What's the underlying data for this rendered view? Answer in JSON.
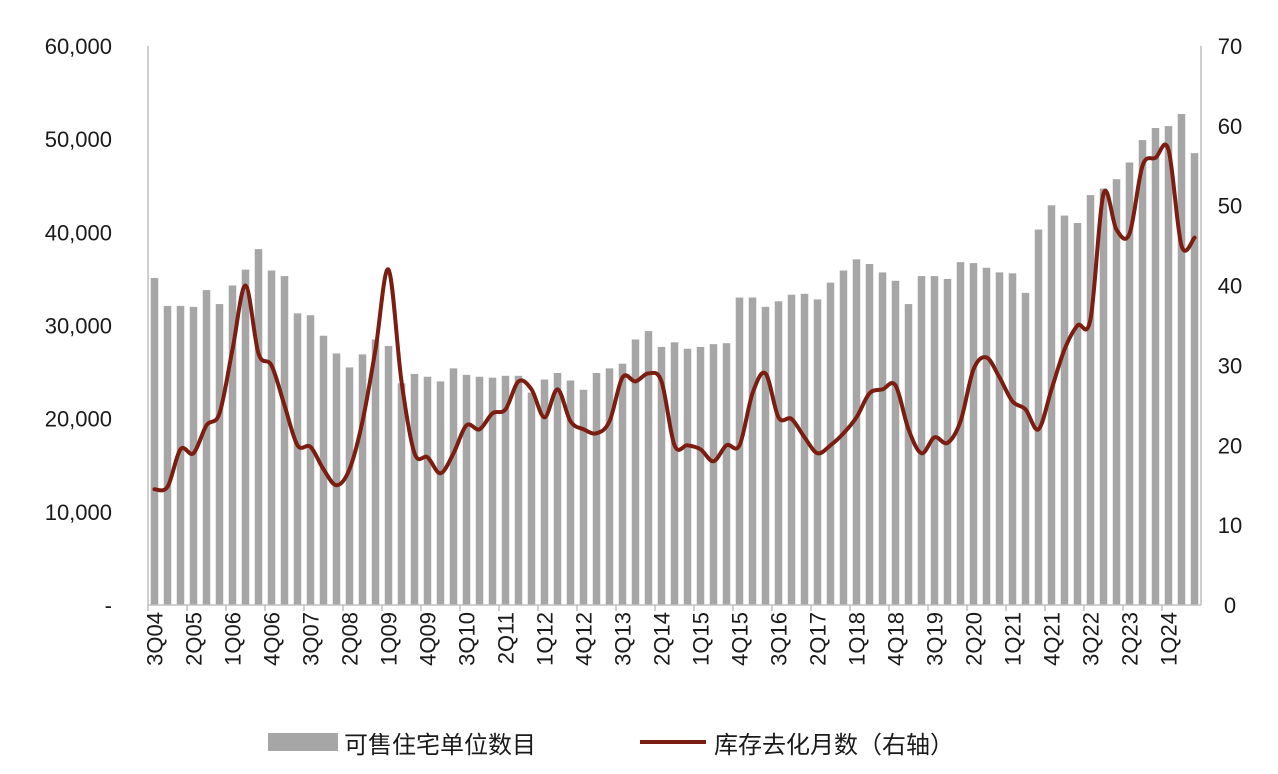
{
  "chart_data": {
    "type": "bar",
    "categories": [
      "3Q04",
      "4Q04",
      "1Q05",
      "2Q05",
      "3Q05",
      "4Q05",
      "1Q06",
      "2Q06",
      "3Q06",
      "4Q06",
      "1Q07",
      "2Q07",
      "3Q07",
      "4Q07",
      "1Q08",
      "2Q08",
      "3Q08",
      "4Q08",
      "1Q09",
      "2Q09",
      "3Q09",
      "4Q09",
      "1Q10",
      "2Q10",
      "3Q10",
      "4Q10",
      "1Q11",
      "2Q11",
      "3Q11",
      "4Q11",
      "1Q12",
      "2Q12",
      "3Q12",
      "4Q12",
      "1Q13",
      "2Q13",
      "3Q13",
      "4Q13",
      "1Q14",
      "2Q14",
      "3Q14",
      "4Q14",
      "1Q15",
      "2Q15",
      "3Q15",
      "4Q15",
      "1Q16",
      "2Q16",
      "3Q16",
      "4Q16",
      "1Q17",
      "2Q17",
      "3Q17",
      "4Q17",
      "1Q18",
      "2Q18",
      "3Q18",
      "4Q18",
      "1Q19",
      "2Q19",
      "3Q19",
      "4Q19",
      "1Q20",
      "2Q20",
      "3Q20",
      "4Q20",
      "1Q21",
      "2Q21",
      "3Q21",
      "4Q21",
      "1Q22",
      "2Q22",
      "3Q22",
      "4Q22",
      "1Q23",
      "2Q23",
      "3Q23",
      "4Q23",
      "1Q24",
      "2Q24",
      "3Q24"
    ],
    "x_tick_labels": [
      "3Q04",
      "2Q05",
      "1Q06",
      "4Q06",
      "3Q07",
      "2Q08",
      "1Q09",
      "4Q09",
      "3Q10",
      "2Q11",
      "1Q12",
      "4Q12",
      "3Q13",
      "2Q14",
      "1Q15",
      "4Q15",
      "3Q16",
      "2Q17",
      "1Q18",
      "4Q18",
      "3Q19",
      "2Q20",
      "1Q21",
      "4Q21",
      "3Q22",
      "2Q23",
      "1Q24"
    ],
    "y_left": {
      "ticks": [
        "-",
        "10,000",
        "20,000",
        "30,000",
        "40,000",
        "50,000",
        "60,000"
      ],
      "min": 0,
      "max": 60000
    },
    "y_right": {
      "ticks": [
        "0",
        "10",
        "20",
        "30",
        "40",
        "50",
        "60",
        "70"
      ],
      "min": 0,
      "max": 70
    },
    "series": [
      {
        "name": "可售住宅单位数目",
        "type": "bar",
        "axis": "left",
        "color": "#a6a6a6",
        "values": [
          35100,
          32100,
          32100,
          32000,
          33800,
          32300,
          34300,
          36000,
          38200,
          35900,
          35300,
          31300,
          31100,
          28900,
          27000,
          25500,
          26900,
          28500,
          27800,
          23800,
          24800,
          24500,
          24000,
          25400,
          24700,
          24500,
          24400,
          24600,
          24600,
          22800,
          24200,
          24900,
          24100,
          23100,
          24900,
          25400,
          25900,
          28500,
          29400,
          27700,
          28200,
          27500,
          27700,
          28000,
          28100,
          33000,
          33000,
          32000,
          32600,
          33300,
          33400,
          32800,
          34600,
          35900,
          37100,
          36600,
          35700,
          34800,
          32300,
          35300,
          35300,
          35000,
          36800,
          36700,
          36200,
          35700,
          35600,
          33500,
          40300,
          42900,
          41800,
          41000,
          44000,
          44700,
          45700,
          47500,
          49900,
          51200,
          51400,
          52700,
          48500
        ]
      },
      {
        "name": "库存去化月数（右轴）",
        "type": "line",
        "axis": "right",
        "color": "#7b1d10",
        "values": [
          14.5,
          14.8,
          19.5,
          19.0,
          22.5,
          24.0,
          32.0,
          40.0,
          31.5,
          30.0,
          25.0,
          20.0,
          19.8,
          17.0,
          15.0,
          17.0,
          23.0,
          32.0,
          42.0,
          28.0,
          19.0,
          18.5,
          16.5,
          19.0,
          22.5,
          22.0,
          24.0,
          24.5,
          28.0,
          27.0,
          23.5,
          27.0,
          23.0,
          22.0,
          21.5,
          23.0,
          28.5,
          28.0,
          29.0,
          28.0,
          20.0,
          20.0,
          19.5,
          18.0,
          20.0,
          20.0,
          26.5,
          29.0,
          23.5,
          23.3,
          21.0,
          19.0,
          20.0,
          21.5,
          23.5,
          26.5,
          27.0,
          27.5,
          22.0,
          19.0,
          21.0,
          20.3,
          23.0,
          29.5,
          31.0,
          28.5,
          25.5,
          24.5,
          22.0,
          27.0,
          32.0,
          35.0,
          35.8,
          51.5,
          47.0,
          46.5,
          55.0,
          56.0,
          57.0,
          45.0,
          46.0
        ]
      }
    ],
    "legend_position": "bottom",
    "grid": false
  }
}
